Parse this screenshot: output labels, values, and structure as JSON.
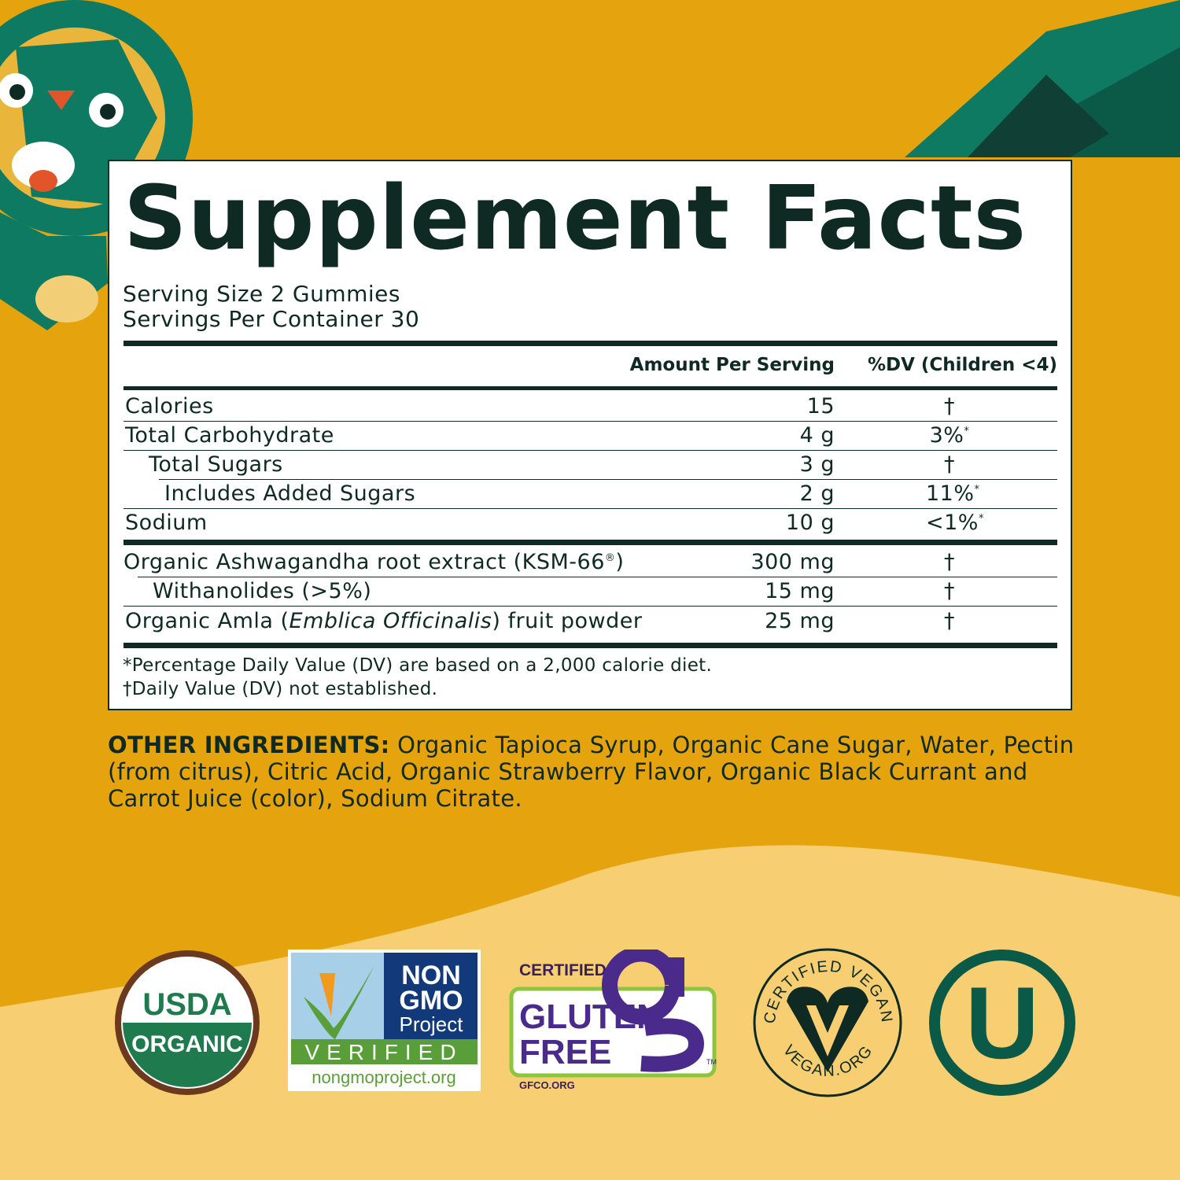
{
  "colors": {
    "background": "#E5A40E",
    "wave": "#F7CF72",
    "text": "#0f2a22",
    "teal": "#0E7A62",
    "panel": "#ffffff"
  },
  "label": {
    "title": "Supplement Facts",
    "serving_size": "Serving Size 2 Gummies",
    "servings_per_container": "Servings Per Container 30",
    "header_amount": "Amount Per Serving",
    "header_dv": "%DV (Children <4)",
    "rows": [
      {
        "label": "Calories",
        "amount": "15",
        "dv": "†",
        "dv_mark": ""
      },
      {
        "label": "Total Carbohydrate",
        "amount": "4 g",
        "dv": "3%",
        "dv_mark": "*"
      },
      {
        "label": "Total Sugars",
        "amount": "3 g",
        "dv": "†",
        "dv_mark": ""
      },
      {
        "label": "Includes Added Sugars",
        "amount": "2 g",
        "dv": "11%",
        "dv_mark": "*"
      },
      {
        "label": "Sodium",
        "amount": "10 g",
        "dv": "<1%",
        "dv_mark": "*"
      }
    ],
    "ingredients_rows": [
      {
        "label": "Organic Ashwagandha root extract (KSM-66",
        "label_mark": "®",
        "label_end": ")",
        "amount": "300 mg",
        "dv": "†"
      },
      {
        "label": "Withanolides (>5%)",
        "amount": "15 mg",
        "dv": "†"
      },
      {
        "label_start": "Organic Amla (",
        "label_italic": "Emblica Officinalis",
        "label_end": ") fruit powder",
        "amount": "25 mg",
        "dv": "†"
      }
    ],
    "footnote_1": "*Percentage Daily Value (DV) are based on a 2,000 calorie diet.",
    "footnote_2": "†Daily Value (DV) not established."
  },
  "other_ingredients": {
    "heading": "OTHER INGREDIENTS:",
    "text": " Organic Tapioca Syrup, Organic Cane Sugar, Water, Pectin (from citrus), Citric Acid, Organic Strawberry Flavor, Organic Black Currant and Carrot Juice (color), Sodium Citrate."
  },
  "certifications": {
    "usda": {
      "line1": "USDA",
      "line2": "ORGANIC"
    },
    "nongmo": {
      "line1": "NON",
      "line2": "GMO",
      "line3": "Project",
      "verified": "VERIFIED",
      "url": "nongmoproject.org"
    },
    "gluten_free": {
      "certified": "CERTIFIED",
      "line1": "GLUTEN",
      "line2": "FREE",
      "tm": "TM",
      "url": "GFCO.ORG"
    },
    "vegan": {
      "top": "CERTIFIED VEGAN",
      "bottom": "VEGAN.ORG"
    },
    "kosher": {
      "letter": "U"
    }
  }
}
